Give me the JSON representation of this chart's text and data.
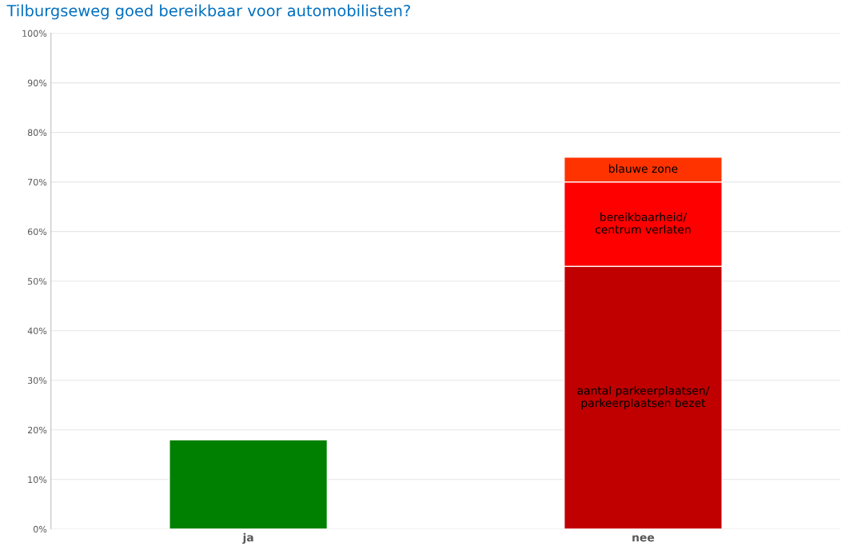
{
  "chart_data": {
    "type": "bar",
    "stacked": true,
    "title": "Tilburgseweg goed bereikbaar voor automobilisten?",
    "categories": [
      "ja",
      "nee"
    ],
    "series": [
      {
        "color": "#008000",
        "values": [
          18,
          null
        ]
      },
      {
        "name": "aantal parkeerplaatsen/\nparkeerplaatsen bezet",
        "color": "#c00000",
        "values": [
          null,
          53
        ]
      },
      {
        "name": "bereikbaarheid/\ncentrum verlaten",
        "color": "#ff0000",
        "values": [
          null,
          17
        ]
      },
      {
        "name": "blauwe zone",
        "color": "#ff3300",
        "values": [
          null,
          5
        ]
      }
    ],
    "ylim": [
      0,
      100
    ],
    "yticks": [
      {
        "value": 0,
        "label": "0%"
      },
      {
        "value": 10,
        "label": "10%"
      },
      {
        "value": 20,
        "label": "20%"
      },
      {
        "value": 30,
        "label": "30%"
      },
      {
        "value": 40,
        "label": "40%"
      },
      {
        "value": 50,
        "label": "50%"
      },
      {
        "value": 60,
        "label": "60%"
      },
      {
        "value": 70,
        "label": "70%"
      },
      {
        "value": 80,
        "label": "80%"
      },
      {
        "value": 90,
        "label": "90%"
      },
      {
        "value": 100,
        "label": "100%"
      }
    ],
    "grid": "y",
    "legend": false
  }
}
